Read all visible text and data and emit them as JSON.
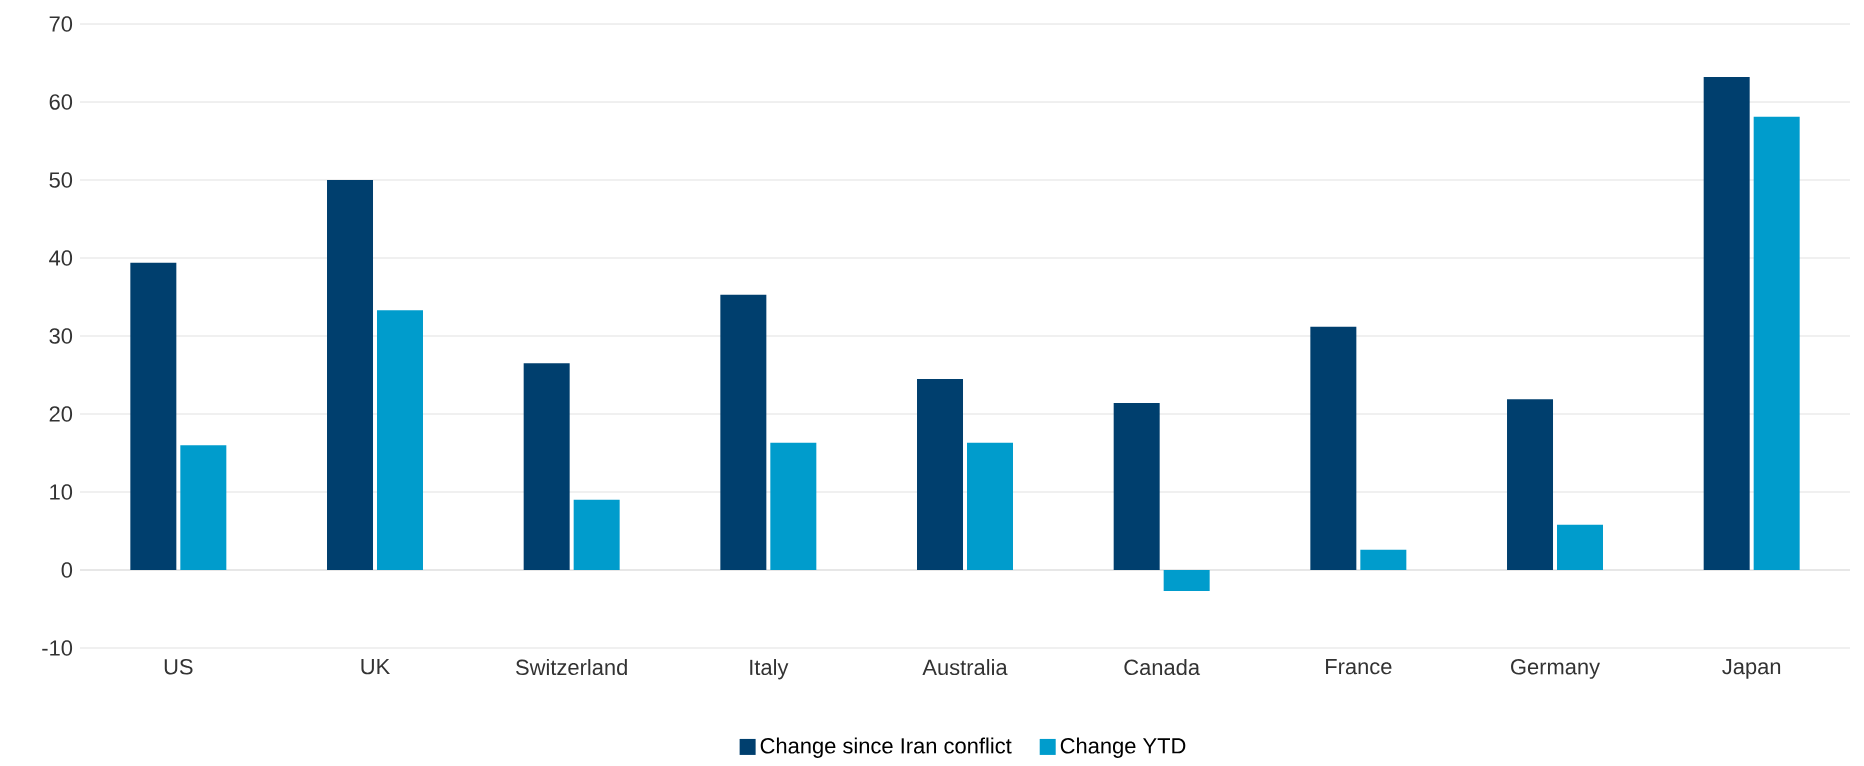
{
  "chart_data": {
    "type": "bar",
    "categories": [
      "US",
      "UK",
      "Switzerland",
      "Italy",
      "Australia",
      "Canada",
      "France",
      "Germany",
      "Japan"
    ],
    "series": [
      {
        "name": "Change since Iran conflict",
        "color": "#003f6e",
        "values": [
          39.4,
          50,
          26.5,
          35.3,
          24.5,
          21.4,
          31.2,
          21.9,
          63.2
        ]
      },
      {
        "name": "Change YTD",
        "color": "#009ccc",
        "values": [
          16,
          33.3,
          9,
          16.3,
          16.3,
          -2.7,
          2.6,
          5.8,
          58.1
        ]
      }
    ],
    "ylim": [
      -10,
      70
    ],
    "yticks": [
      -10,
      0,
      10,
      20,
      30,
      40,
      50,
      60,
      70
    ],
    "grid": "y",
    "legend": "bottom"
  }
}
